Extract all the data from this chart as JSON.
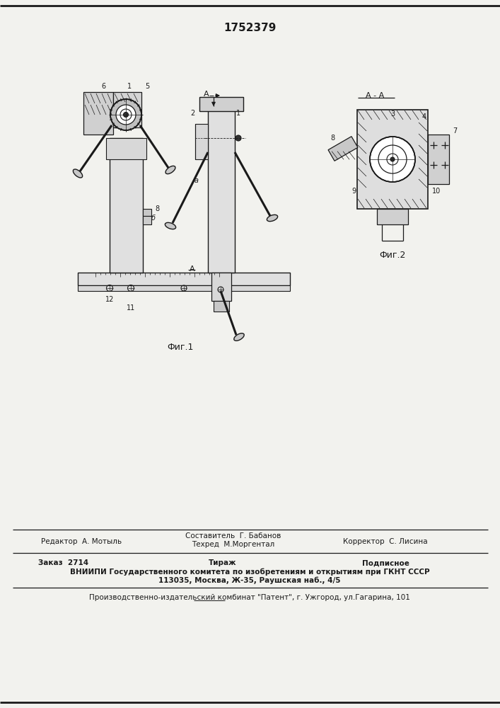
{
  "patent_number": "1752379",
  "fig1_label": "Фиг.1",
  "fig2_label": "Фиг.2",
  "section_label": "A - A",
  "editor_line": "Редактор  А. Мотыль",
  "compiler_line1": "Составитель  Г. Бабанов",
  "compiler_line2": "Техред  М.Моргентал",
  "corrector_line": "Корректор  С. Лисина",
  "order_label": "Заказ  2714",
  "tirazh_label": "Тираж",
  "podpisnoe_label": "Подписное",
  "vnipi_line1": "ВНИИПИ Государственного комитета по изобретениям и открытиям при ГКНТ СССР",
  "vnipi_line2": "113035, Москва, Ж-35, Раушская наб., 4/5",
  "patent_kombnat": "Производственно-издательский комбинат \"Патент\", г. Ужгород, ул.Гагарина, 101",
  "bg_color": "#f2f2ee",
  "lc": "#1a1a1a"
}
